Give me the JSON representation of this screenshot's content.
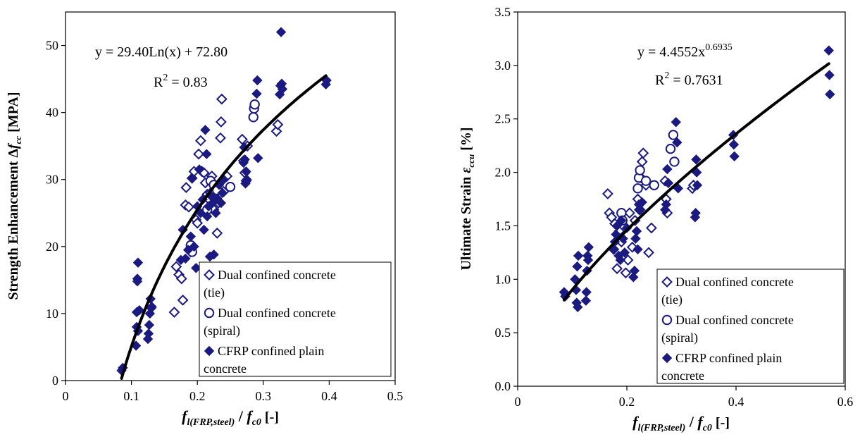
{
  "chart_data": [
    {
      "type": "scatter",
      "xlabel_main": "f",
      "xlabel_sub1": "l(FRP,steel)",
      "xlabel_sep": " / ",
      "xlabel_main2": "f",
      "xlabel_sub2": "c0",
      "xlabel_unit": " [-]",
      "ylabel_pre": "Strength Enhancement Δ",
      "ylabel_var": "f",
      "ylabel_sub": "cc",
      "ylabel_unit": " [MPA]",
      "xlim": [
        0,
        0.5
      ],
      "ylim": [
        0,
        55
      ],
      "xticks": [
        "0",
        "0.1",
        "0.2",
        "0.3",
        "0.4",
        "0.5"
      ],
      "xtick_values": [
        0,
        0.1,
        0.2,
        0.3,
        0.4,
        0.5
      ],
      "yticks": [
        "0",
        "10",
        "20",
        "30",
        "40",
        "50"
      ],
      "ytick_values": [
        0,
        10,
        20,
        30,
        40,
        50
      ],
      "equation": "y = 29.40Ln(x) + 72.80",
      "r2_prefix": "R",
      "r2_sup": "2",
      "r2_value": " = 0.83",
      "trendline": {
        "type": "log",
        "a": 29.4,
        "b": 72.8,
        "x_range": [
          0.085,
          0.395
        ]
      },
      "legend": [
        {
          "line1": "Dual confined concrete",
          "line2": "(tie)",
          "marker": "open-diamond"
        },
        {
          "line1": "Dual confined concrete",
          "line2": "(spiral)",
          "marker": "open-circle"
        },
        {
          "line1": "CFRP confined plain",
          "line2": "concrete",
          "marker": "filled-diamond"
        }
      ],
      "series": [
        {
          "marker": "open-diamond",
          "points": [
            [
              0.165,
              10.2
            ],
            [
              0.168,
              17.0
            ],
            [
              0.172,
              15.8
            ],
            [
              0.176,
              15.2
            ],
            [
              0.178,
              12.0
            ],
            [
              0.182,
              26.2
            ],
            [
              0.183,
              28.8
            ],
            [
              0.187,
              25.9
            ],
            [
              0.19,
              19.2
            ],
            [
              0.192,
              30.2
            ],
            [
              0.195,
              31.2
            ],
            [
              0.198,
              24.0
            ],
            [
              0.2,
              23.5
            ],
            [
              0.202,
              33.8
            ],
            [
              0.205,
              35.8
            ],
            [
              0.207,
              31.2
            ],
            [
              0.21,
              31.0
            ],
            [
              0.212,
              29.5
            ],
            [
              0.215,
              27.8
            ],
            [
              0.218,
              26.0
            ],
            [
              0.22,
              28.0
            ],
            [
              0.222,
              30.5
            ],
            [
              0.225,
              25.5
            ],
            [
              0.228,
              29.0
            ],
            [
              0.23,
              22.0
            ],
            [
              0.232,
              26.5
            ],
            [
              0.235,
              36.2
            ],
            [
              0.236,
              38.6
            ],
            [
              0.237,
              42.0
            ],
            [
              0.24,
              28.2
            ],
            [
              0.245,
              30.5
            ],
            [
              0.268,
              36.0
            ],
            [
              0.27,
              32.8
            ],
            [
              0.272,
              31.0
            ],
            [
              0.274,
              29.8
            ],
            [
              0.276,
              35.0
            ],
            [
              0.32,
              37.2
            ],
            [
              0.322,
              38.2
            ]
          ]
        },
        {
          "marker": "open-circle",
          "points": [
            [
              0.19,
              20.2
            ],
            [
              0.192,
              19.2
            ],
            [
              0.215,
              25.5
            ],
            [
              0.218,
              27.2
            ],
            [
              0.22,
              29.8
            ],
            [
              0.225,
              29.2
            ],
            [
              0.23,
              28.4
            ],
            [
              0.25,
              28.9
            ],
            [
              0.285,
              39.3
            ],
            [
              0.286,
              40.6
            ],
            [
              0.287,
              41.2
            ]
          ]
        },
        {
          "marker": "filled-diamond",
          "points": [
            [
              0.085,
              1.5
            ],
            [
              0.087,
              1.9
            ],
            [
              0.107,
              5.2
            ],
            [
              0.108,
              8.0
            ],
            [
              0.108,
              10.2
            ],
            [
              0.109,
              14.8
            ],
            [
              0.109,
              15.2
            ],
            [
              0.11,
              17.6
            ],
            [
              0.11,
              7.4
            ],
            [
              0.112,
              10.5
            ],
            [
              0.125,
              6.2
            ],
            [
              0.126,
              7.0
            ],
            [
              0.127,
              8.3
            ],
            [
              0.128,
              10.0
            ],
            [
              0.129,
              12.2
            ],
            [
              0.13,
              10.8
            ],
            [
              0.131,
              11.0
            ],
            [
              0.175,
              18.0
            ],
            [
              0.178,
              22.5
            ],
            [
              0.182,
              18.2
            ],
            [
              0.186,
              19.5
            ],
            [
              0.19,
              21.5
            ],
            [
              0.192,
              30.2
            ],
            [
              0.195,
              20.0
            ],
            [
              0.198,
              16.8
            ],
            [
              0.2,
              26.0
            ],
            [
              0.203,
              31.5
            ],
            [
              0.205,
              25.0
            ],
            [
              0.208,
              27.0
            ],
            [
              0.21,
              22.5
            ],
            [
              0.212,
              37.4
            ],
            [
              0.214,
              33.8
            ],
            [
              0.215,
              24.5
            ],
            [
              0.217,
              26.0
            ],
            [
              0.219,
              18.5
            ],
            [
              0.221,
              27.5
            ],
            [
              0.223,
              26.5
            ],
            [
              0.225,
              18.8
            ],
            [
              0.228,
              25.0
            ],
            [
              0.23,
              27.2
            ],
            [
              0.233,
              29.2
            ],
            [
              0.236,
              26.5
            ],
            [
              0.238,
              28.0
            ],
            [
              0.24,
              30.0
            ],
            [
              0.27,
              32.5
            ],
            [
              0.271,
              34.8
            ],
            [
              0.272,
              33.0
            ],
            [
              0.273,
              29.4
            ],
            [
              0.274,
              31.2
            ],
            [
              0.275,
              30.0
            ],
            [
              0.29,
              42.8
            ],
            [
              0.291,
              44.8
            ],
            [
              0.292,
              33.2
            ],
            [
              0.325,
              42.7
            ],
            [
              0.326,
              44.0
            ],
            [
              0.327,
              52.0
            ],
            [
              0.328,
              44.3
            ],
            [
              0.329,
              43.5
            ],
            [
              0.395,
              44.2
            ],
            [
              0.396,
              44.8
            ]
          ]
        }
      ]
    },
    {
      "type": "scatter",
      "xlabel_main": "f",
      "xlabel_sub1": "l(FRP,steel)",
      "xlabel_sep": " / ",
      "xlabel_main2": "f",
      "xlabel_sub2": "c0",
      "xlabel_unit": " [-]",
      "ylabel_pre": "Ultimate Strain ",
      "ylabel_var": "ε",
      "ylabel_sub": "ccu",
      "ylabel_unit": " [%]",
      "xlim": [
        0,
        0.6
      ],
      "ylim": [
        0,
        3.5
      ],
      "xticks": [
        "0",
        "0.2",
        "0.4",
        "0.6"
      ],
      "xtick_values": [
        0,
        0.2,
        0.4,
        0.6
      ],
      "yticks": [
        "0.0",
        "0.5",
        "1.0",
        "1.5",
        "2.0",
        "2.5",
        "3.0",
        "3.5"
      ],
      "ytick_values": [
        0,
        0.5,
        1.0,
        1.5,
        2.0,
        2.5,
        3.0,
        3.5
      ],
      "equation_pre": "y = 4.4552x",
      "equation_sup": "0.6935",
      "r2_prefix": "R",
      "r2_sup": "2",
      "r2_value": " = 0.7631",
      "trendline": {
        "type": "power",
        "a": 4.4552,
        "b": 0.6935,
        "x_range": [
          0.085,
          0.57
        ]
      },
      "legend": [
        {
          "line1": "Dual confined concrete",
          "line2": "(tie)",
          "marker": "open-diamond"
        },
        {
          "line1": "Dual confined concrete",
          "line2": "(spiral)",
          "marker": "open-circle"
        },
        {
          "line1": "CFRP confined plain",
          "line2": "concrete",
          "marker": "filled-diamond"
        }
      ],
      "series": [
        {
          "marker": "open-diamond",
          "points": [
            [
              0.165,
              1.8
            ],
            [
              0.168,
              1.62
            ],
            [
              0.172,
              1.58
            ],
            [
              0.176,
              1.28
            ],
            [
              0.178,
              1.52
            ],
            [
              0.182,
              1.1
            ],
            [
              0.186,
              1.45
            ],
            [
              0.19,
              1.35
            ],
            [
              0.194,
              1.22
            ],
            [
              0.198,
              1.06
            ],
            [
              0.202,
              1.18
            ],
            [
              0.205,
              1.62
            ],
            [
              0.21,
              1.3
            ],
            [
              0.215,
              1.55
            ],
            [
              0.22,
              1.75
            ],
            [
              0.223,
              1.65
            ],
            [
              0.226,
              1.95
            ],
            [
              0.228,
              2.1
            ],
            [
              0.23,
              2.18
            ],
            [
              0.235,
              1.88
            ],
            [
              0.24,
              1.25
            ],
            [
              0.245,
              1.48
            ],
            [
              0.27,
              1.92
            ],
            [
              0.272,
              1.75
            ],
            [
              0.274,
              1.62
            ],
            [
              0.32,
              1.85
            ],
            [
              0.322,
              1.88
            ]
          ]
        },
        {
          "marker": "open-circle",
          "points": [
            [
              0.19,
              1.62
            ],
            [
              0.192,
              1.55
            ],
            [
              0.22,
              1.85
            ],
            [
              0.222,
              1.95
            ],
            [
              0.224,
              2.02
            ],
            [
              0.235,
              1.92
            ],
            [
              0.25,
              1.88
            ],
            [
              0.28,
              2.22
            ],
            [
              0.285,
              2.35
            ],
            [
              0.287,
              2.1
            ]
          ]
        },
        {
          "marker": "filled-diamond",
          "points": [
            [
              0.085,
              0.88
            ],
            [
              0.087,
              0.84
            ],
            [
              0.105,
              1.0
            ],
            [
              0.107,
              0.9
            ],
            [
              0.108,
              0.78
            ],
            [
              0.109,
              1.12
            ],
            [
              0.11,
              0.74
            ],
            [
              0.111,
              1.22
            ],
            [
              0.125,
              0.8
            ],
            [
              0.126,
              0.88
            ],
            [
              0.127,
              1.08
            ],
            [
              0.128,
              1.22
            ],
            [
              0.129,
              1.18
            ],
            [
              0.13,
              1.3
            ],
            [
              0.175,
              1.28
            ],
            [
              0.178,
              1.35
            ],
            [
              0.18,
              1.42
            ],
            [
              0.182,
              1.5
            ],
            [
              0.185,
              1.22
            ],
            [
              0.188,
              1.18
            ],
            [
              0.19,
              1.55
            ],
            [
              0.193,
              1.38
            ],
            [
              0.196,
              1.25
            ],
            [
              0.2,
              1.48
            ],
            [
              0.212,
              1.02
            ],
            [
              0.214,
              1.08
            ],
            [
              0.216,
              1.38
            ],
            [
              0.218,
              1.45
            ],
            [
              0.22,
              1.28
            ],
            [
              0.222,
              1.7
            ],
            [
              0.225,
              1.65
            ],
            [
              0.228,
              1.72
            ],
            [
              0.27,
              1.65
            ],
            [
              0.272,
              1.7
            ],
            [
              0.274,
              2.03
            ],
            [
              0.276,
              1.9
            ],
            [
              0.29,
              2.47
            ],
            [
              0.292,
              2.28
            ],
            [
              0.294,
              1.85
            ],
            [
              0.325,
              1.58
            ],
            [
              0.326,
              1.62
            ],
            [
              0.327,
              2.12
            ],
            [
              0.328,
              2.0
            ],
            [
              0.329,
              1.88
            ],
            [
              0.395,
              2.35
            ],
            [
              0.396,
              2.26
            ],
            [
              0.397,
              2.15
            ],
            [
              0.57,
              3.14
            ],
            [
              0.571,
              2.91
            ],
            [
              0.572,
              2.73
            ]
          ]
        }
      ]
    }
  ]
}
